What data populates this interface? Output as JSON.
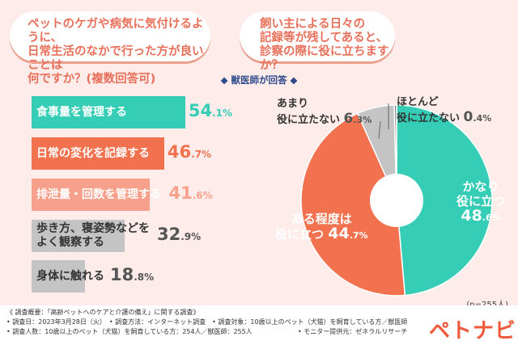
{
  "questions": {
    "q1": [
      "ペットのケガや病気に気付けるように、",
      "日常生活のなかで行った方が良いことは",
      "何ですか？(複数回答可)"
    ],
    "q2": [
      "飼い主による日々の",
      "記録等が残してあると、",
      "診察の際に役に立ちますか？"
    ]
  },
  "subtitle": "◆ 獣医師が回答 ◆",
  "chart_data": [
    {
      "type": "bar",
      "orientation": "horizontal",
      "unit": "%",
      "categories": [
        "食事量を管理する",
        "日常の変化を記録する",
        "排泄量・回数を管理する",
        "歩き方、寝姿勢などをよく観察する",
        "身体に触れる"
      ],
      "labels": [
        [
          "食事量を管理する"
        ],
        [
          "日常の変化を記録する"
        ],
        [
          "排泄量・回数を管理する"
        ],
        [
          "歩き方、寝姿勢などを",
          "よく観察する"
        ],
        [
          "身体に触れる"
        ]
      ],
      "values": [
        54.1,
        46.7,
        41.6,
        32.9,
        18.8
      ],
      "colors": [
        "#35cdb5",
        "#f2724f",
        "#f7a08b",
        "#c4c4c4",
        "#c4c4c4"
      ],
      "value_colors": [
        "#35cdb5",
        "#f2724f",
        "#f7a08b",
        "#555555",
        "#555555"
      ],
      "label_colors": [
        "#ffffff",
        "#ffffff",
        "#ffffff",
        "#333333",
        "#333333"
      ]
    },
    {
      "type": "pie",
      "style": "donut",
      "n": "(n=255人)",
      "slices": [
        {
          "label": "かなり役に立つ",
          "lines": [
            "かなり",
            "役に立つ"
          ],
          "value": 48.6,
          "color": "#35cdb5"
        },
        {
          "label": "ある程度は役に立つ",
          "lines": [
            "ある程度は",
            "役に立つ"
          ],
          "value": 44.7,
          "color": "#f2724f"
        },
        {
          "label": "あまり役に立たない",
          "lines": [
            "あまり",
            "役に立たない"
          ],
          "value": 6.3,
          "color": "#c4c4c4"
        },
        {
          "label": "ほとんど役に立たない",
          "lines": [
            "ほとんど",
            "役に立たない"
          ],
          "value": 0.4,
          "color": "#888888"
        }
      ]
    }
  ],
  "footer": [
    "《 調査概要：「高齢ペットへのケアと介護の備え」に関する調査》",
    "• 調査日：2023年3月28日（火）　• 調査方法：インターネット調査　• 調査対象：10歳以上のペット（犬猫）を飼育している方／獣医師",
    "• 調査人数：10歳以上のペット（犬猫）を飼育している方：254人／獣医師：255人",
    "• モニター提供元：ゼネラルリサーチ"
  ],
  "logo": "ペトナビ"
}
